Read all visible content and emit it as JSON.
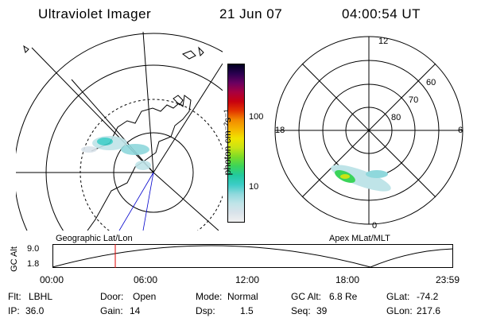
{
  "header": {
    "instrument": "Ultraviolet Imager",
    "date": "21 Jun 07",
    "time": "04:00:54 UT"
  },
  "geo_map": {
    "caption": "Geographic Lat/Lon"
  },
  "colorbar": {
    "unit_label": "photon cm⁻²s⁻¹",
    "ticks": [
      "100",
      "10"
    ],
    "colors": [
      "#f0f0f0",
      "#d9e3ea",
      "#bfe4e8",
      "#8fd8dc",
      "#3ccdc7",
      "#22c9a0",
      "#3bd45a",
      "#7bdc28",
      "#c8e414",
      "#f0e400",
      "#f5b400",
      "#f28a00",
      "#e23400",
      "#c80010",
      "#a80040",
      "#6a0060",
      "#2a0050",
      "#000020"
    ]
  },
  "polar_plot": {
    "caption": "Apex MLat/MLT",
    "mlt_labels": {
      "top": "12",
      "left": "18",
      "right": "6",
      "bottom": "0"
    },
    "lat_labels": [
      "60",
      "70",
      "80"
    ]
  },
  "altitude_strip": {
    "axis_label": "GC Alt",
    "y_ticks": [
      "9.0",
      "1.8"
    ],
    "x_ticks": [
      "00:00",
      "06:00",
      "12:00",
      "18:00",
      "23:59"
    ]
  },
  "status": {
    "row1": [
      {
        "k": "Flt:",
        "v": "LBHL"
      },
      {
        "k": "Door:",
        "v": "Open"
      },
      {
        "k": "Mode:",
        "v": "Normal"
      },
      {
        "k": "GC Alt:",
        "v": "6.8 Re"
      },
      {
        "k": "GLat:",
        "v": "-74.2"
      }
    ],
    "row2": [
      {
        "k": "IP:",
        "v": "36.0"
      },
      {
        "k": "Gain:",
        "v": "14"
      },
      {
        "k": "Dsp:",
        "v": "1.5"
      },
      {
        "k": "Seq:",
        "v": "39"
      },
      {
        "k": "GLon:",
        "v": "217.6"
      }
    ]
  },
  "colors": {
    "marker": "#e00000",
    "meridian": "#0000cc"
  }
}
